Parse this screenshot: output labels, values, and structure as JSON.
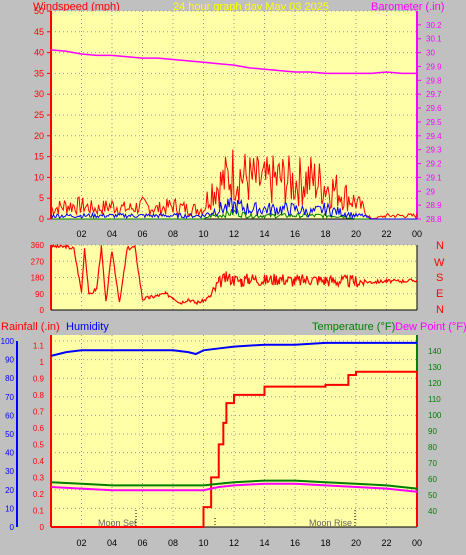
{
  "header": {
    "left_label": "Windspeed (mph)",
    "center_label": "24 hour graph day   May 03 2025",
    "right_label": "Barometer (.in)"
  },
  "direction_labels": [
    "N",
    "W",
    "S",
    "E",
    "N"
  ],
  "lower_header": {
    "rainfall_label": "Rainfall (.in)",
    "humidity_label": "Humidity",
    "temperature_label": "Temperature (°F)",
    "dewpoint_label": "Dew Point (°F)"
  },
  "moon_labels": [
    "Moon Set",
    "Moon Rise"
  ],
  "colors": {
    "background": "#c0c0c0",
    "plot_bg": "#ffffa8",
    "wind": "#ff0000",
    "gust": "#ff0000",
    "barometer": "#ff00ff",
    "wind_dir": "#ff0000",
    "humidity": "#0000ff",
    "rainfall": "#ff0000",
    "temperature": "#008000",
    "dew_point": "#ff00ff",
    "title": "#ffff00"
  },
  "chart_data": [
    {
      "type": "line",
      "title": "24 hour graph day   May 03 2025",
      "ylabel": "Windspeed (mph)",
      "y2label": "Barometer (.in)",
      "xticks": [
        "02",
        "04",
        "06",
        "08",
        "10",
        "12",
        "14",
        "16",
        "18",
        "20",
        "22",
        "00"
      ],
      "ylim": [
        0,
        50
      ],
      "y2lim": [
        28.8,
        30.3
      ],
      "yticks": [
        0,
        5,
        10,
        15,
        20,
        25,
        30,
        35,
        40,
        45,
        50
      ],
      "y2ticks": [
        "28.8",
        "28.9",
        "29",
        "29.1",
        "29.2",
        "29.3",
        "29.4",
        "29.5",
        "29.6",
        "29.7",
        "29.8",
        "29.9",
        "30",
        "30.1",
        "30.2"
      ],
      "series": [
        {
          "name": "Barometer",
          "axis": "right",
          "x": [
            0,
            1,
            2,
            3,
            4,
            5,
            6,
            7,
            8,
            9,
            10,
            11,
            12,
            13,
            14,
            15,
            16,
            17,
            18,
            19,
            20,
            21,
            22,
            23,
            24
          ],
          "values": [
            30.02,
            30.01,
            29.99,
            29.98,
            29.98,
            29.97,
            29.96,
            29.96,
            29.95,
            29.94,
            29.93,
            29.92,
            29.91,
            29.89,
            29.88,
            29.87,
            29.86,
            29.86,
            29.85,
            29.85,
            29.85,
            29.85,
            29.86,
            29.85,
            29.85
          ]
        },
        {
          "name": "Wind Gust",
          "x": [
            0,
            1,
            2,
            3,
            4,
            5,
            6,
            7,
            8,
            9,
            10,
            10.5,
            11,
            12,
            13,
            14,
            15,
            16,
            17,
            18,
            19,
            20,
            20.5,
            21,
            22,
            23,
            24
          ],
          "values": [
            3,
            4,
            4,
            3,
            4,
            3,
            4,
            3,
            4,
            3,
            3,
            9,
            10,
            14,
            12,
            11,
            12,
            11,
            12,
            10,
            8,
            5,
            3,
            0,
            1,
            1,
            1
          ]
        },
        {
          "name": "Wind Average",
          "x": [
            0,
            1,
            2,
            3,
            4,
            5,
            6,
            7,
            8,
            9,
            10,
            10.5,
            11,
            12,
            13,
            14,
            15,
            16,
            17,
            18,
            19,
            20,
            20.5,
            21,
            22,
            23,
            24
          ],
          "values": [
            1,
            1,
            1,
            1,
            1,
            1,
            1,
            1,
            1,
            1,
            1,
            2,
            3,
            4,
            3,
            3,
            3,
            3,
            2,
            3,
            2,
            1,
            1,
            0,
            0,
            0,
            0
          ]
        },
        {
          "name": "Wind Low",
          "x": [
            0,
            1,
            2,
            3,
            4,
            5,
            6,
            7,
            8,
            9,
            10,
            10.5,
            11,
            12,
            13,
            14,
            15,
            16,
            17,
            18,
            19,
            20,
            20.5,
            21,
            22,
            23,
            24
          ],
          "values": [
            0,
            0,
            0,
            0,
            0,
            0,
            0,
            0,
            0,
            0,
            0,
            1,
            1,
            2,
            1,
            1,
            1,
            1,
            1,
            1,
            1,
            0,
            0,
            0,
            0,
            0,
            0
          ]
        }
      ]
    },
    {
      "type": "line",
      "ylim": [
        0,
        360
      ],
      "yticks": [
        0,
        90,
        180,
        270,
        360
      ],
      "xticks": [
        "02",
        "04",
        "06",
        "08",
        "10",
        "12",
        "14",
        "16",
        "18",
        "20",
        "22",
        "00"
      ],
      "series": [
        {
          "name": "Wind Direction",
          "x": [
            0,
            0.5,
            1,
            1.5,
            2,
            2.2,
            2.5,
            3,
            3.3,
            3.6,
            4,
            4.5,
            5,
            5.5,
            6,
            6.5,
            7,
            7.5,
            8,
            8.5,
            9,
            9.5,
            10,
            10.5,
            11,
            11.5,
            12,
            12.5,
            13,
            14,
            15,
            16,
            17,
            18,
            19,
            20,
            21,
            22,
            23,
            24
          ],
          "values": [
            355,
            350,
            350,
            340,
            100,
            345,
            80,
            120,
            350,
            40,
            330,
            40,
            340,
            350,
            60,
            70,
            80,
            90,
            70,
            40,
            60,
            40,
            50,
            80,
            150,
            180,
            170,
            160,
            175,
            165,
            175,
            160,
            170,
            165,
            160,
            160,
            155,
            160,
            160,
            165
          ]
        }
      ]
    },
    {
      "type": "line",
      "ylabel": "Rainfall (.in)",
      "y2label": "Humidity",
      "y3label": "Temperature (°F)",
      "y4label": "Dew Point (°F)",
      "ylim_humidity": [
        0,
        100
      ],
      "ylim_rain": [
        0,
        1.15
      ],
      "ylim_temp": [
        30,
        150
      ],
      "yticks_humidity": [
        0,
        10,
        20,
        30,
        40,
        50,
        60,
        70,
        80,
        90,
        100
      ],
      "yticks_rain": [
        "0",
        "0.1",
        "0.2",
        "0.3",
        "0.4",
        "0.5",
        "0.6",
        "0.7",
        "0.8",
        "0.9",
        "1",
        "1.1"
      ],
      "yticks_temp": [
        40,
        50,
        60,
        70,
        80,
        90,
        100,
        110,
        120,
        130,
        140
      ],
      "xticks": [
        "02",
        "04",
        "06",
        "08",
        "10",
        "12",
        "14",
        "16",
        "18",
        "20",
        "22",
        "00"
      ],
      "series": [
        {
          "name": "Humidity",
          "x": [
            0,
            1,
            2,
            4,
            6,
            8,
            9,
            9.5,
            10,
            11,
            12,
            14,
            16,
            18,
            20,
            22,
            24
          ],
          "values": [
            92,
            94,
            95,
            95,
            95,
            95,
            94,
            93,
            95,
            96,
            97,
            98,
            98,
            99,
            99,
            99,
            99
          ]
        },
        {
          "name": "Rainfall",
          "x": [
            0,
            9.5,
            10,
            10.5,
            11,
            11.3,
            11.5,
            12,
            14,
            16,
            18,
            19,
            19.5,
            20,
            22,
            24
          ],
          "values": [
            0,
            0,
            0.12,
            0.3,
            0.5,
            0.63,
            0.75,
            0.8,
            0.85,
            0.85,
            0.86,
            0.86,
            0.92,
            0.94,
            0.94,
            0.94
          ]
        },
        {
          "name": "Temperature",
          "x": [
            0,
            2,
            4,
            6,
            8,
            10,
            11,
            12,
            14,
            16,
            18,
            20,
            22,
            24
          ],
          "values": [
            58,
            57,
            56,
            56,
            56,
            56,
            57,
            58,
            59,
            59,
            58,
            57,
            56,
            54
          ]
        },
        {
          "name": "Dew Point",
          "x": [
            0,
            2,
            4,
            6,
            8,
            10,
            11,
            12,
            14,
            16,
            18,
            20,
            22,
            24
          ],
          "values": [
            55,
            54,
            53,
            53,
            53,
            53,
            55,
            56,
            57,
            57,
            56,
            55,
            54,
            52
          ]
        }
      ]
    }
  ]
}
